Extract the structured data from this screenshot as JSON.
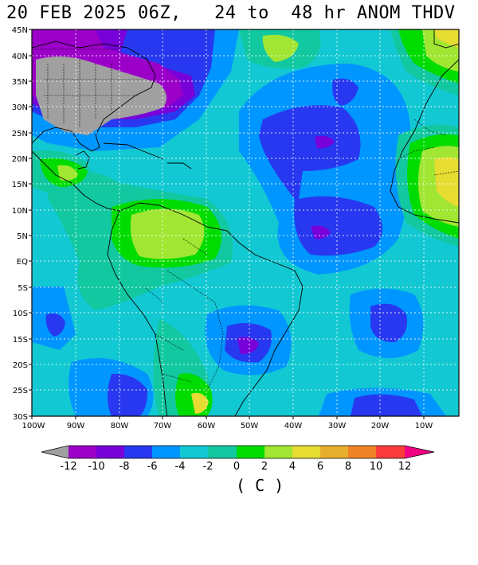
{
  "header": {
    "title": "20 FEB 2025 06Z,   24 to  48 hr ANOM THDV"
  },
  "axes": {
    "lat_labels": [
      "45N",
      "40N",
      "35N",
      "30N",
      "25N",
      "20N",
      "15N",
      "10N",
      "5N",
      "EQ",
      "5S",
      "10S",
      "15S",
      "20S",
      "25S",
      "30S"
    ],
    "lon_labels": [
      "100W",
      "90W",
      "80W",
      "70W",
      "60W",
      "50W",
      "40W",
      "30W",
      "20W",
      "10W"
    ]
  },
  "colorbar": {
    "levels": [
      "-12",
      "-10",
      "-8",
      "-6",
      "-4",
      "-2",
      "0",
      "2",
      "4",
      "6",
      "8",
      "10",
      "12"
    ],
    "colors": [
      "#a0a0a0",
      "#9a00c8",
      "#7800d8",
      "#2838f0",
      "#0096ff",
      "#12c8d2",
      "#12c8a0",
      "#00dc00",
      "#a0e632",
      "#e6dc32",
      "#e6af2d",
      "#f08228",
      "#fa3c3c",
      "#f00082"
    ],
    "units": "( C )"
  },
  "field_colors": {
    "neg12": "#a0a0a0",
    "neg10": "#9a00c8",
    "neg8": "#7800d8",
    "neg6": "#2838f0",
    "neg4": "#0096ff",
    "neg2": "#12c8d2",
    "zero": "#12c8a0",
    "pos2": "#00dc00",
    "pos4": "#a0e632",
    "pos6": "#e6dc32",
    "pos8": "#e6af2d"
  }
}
